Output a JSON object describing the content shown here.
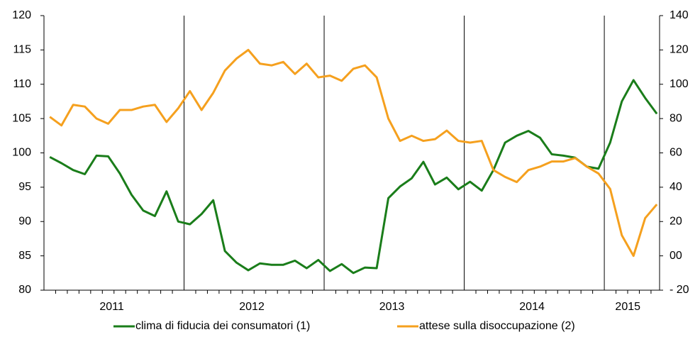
{
  "chart_data": {
    "type": "line",
    "categories": [
      null,
      null,
      null,
      null,
      null,
      "2011",
      null,
      null,
      null,
      null,
      null,
      null,
      null,
      null,
      null,
      null,
      null,
      "2012",
      null,
      null,
      null,
      null,
      null,
      null,
      null,
      null,
      null,
      null,
      null,
      "2013",
      null,
      null,
      null,
      null,
      null,
      null,
      null,
      null,
      null,
      null,
      null,
      "2014",
      null,
      null,
      null,
      null,
      null,
      null,
      null,
      null,
      "2015",
      null,
      null
    ],
    "series": [
      {
        "name": "clima di fiducia dei consumatori (1)",
        "color": "#1a7d1a",
        "axis": "y",
        "values": [
          99.4,
          98.5,
          97.5,
          96.9,
          99.6,
          99.5,
          97.0,
          93.9,
          91.6,
          90.8,
          94.4,
          90.0,
          89.6,
          91.1,
          93.1,
          85.7,
          84.0,
          82.9,
          83.9,
          83.7,
          83.7,
          84.3,
          83.2,
          84.4,
          82.8,
          83.8,
          82.5,
          83.3,
          83.2,
          93.4,
          95.1,
          96.3,
          98.7,
          95.4,
          96.4,
          94.7,
          95.8,
          94.5,
          97.5,
          101.5,
          102.5,
          103.2,
          102.2,
          99.8,
          99.6,
          99.3,
          98.0,
          97.7,
          101.5,
          107.5,
          110.6,
          108.0,
          105.7
        ]
      },
      {
        "name": "attese sulla disoccupazione (2)",
        "color": "#f5a01e",
        "axis": "y2",
        "values": [
          81,
          76,
          88,
          87,
          80,
          77,
          85,
          85,
          87,
          88,
          78,
          86,
          96,
          85,
          95,
          108,
          115,
          120,
          112,
          111,
          113,
          106,
          112,
          104,
          105,
          102,
          109,
          111,
          104,
          80,
          67,
          70,
          67,
          68,
          73,
          67,
          66,
          67,
          50,
          46,
          43,
          50,
          52,
          55,
          55,
          57,
          52,
          48,
          39,
          12,
          0,
          22,
          30
        ]
      }
    ],
    "ylim": [
      80,
      120
    ],
    "yticks": [
      80,
      85,
      90,
      95,
      100,
      105,
      110,
      115,
      120
    ],
    "y2lim": [
      -20,
      140
    ],
    "y2ticks": [
      {
        "value": -20,
        "label": "- 20"
      },
      {
        "value": 0,
        "label": "00"
      },
      20,
      40,
      60,
      80,
      100,
      120,
      140
    ]
  }
}
